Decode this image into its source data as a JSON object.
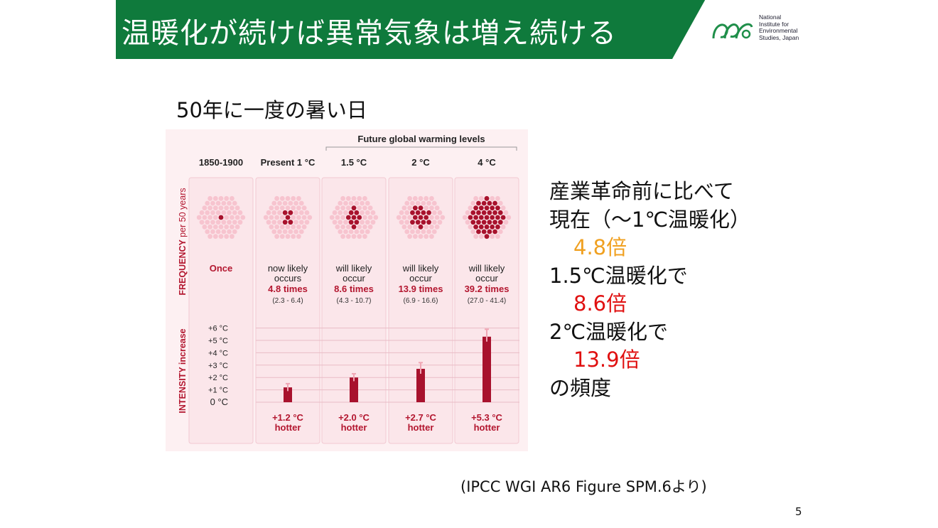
{
  "slide": {
    "title": "温暖化が続けば異常気象は増え続ける",
    "logo_text": [
      "National",
      "Institute for",
      "Environmental",
      "Studies, Japan"
    ],
    "subtitle": "50年に一度の暑い日",
    "side_text": {
      "line1": "産業革命前に比べて",
      "line2": "現在（～1℃温暖化）",
      "line3": "4.8倍",
      "line4": "1.5℃温暖化で",
      "line5": "8.6倍",
      "line6": "2℃温暖化で",
      "line7": "13.9倍",
      "line8": "の頻度"
    },
    "citation": "(IPCC WGI AR6 Figure SPM.6より)",
    "page_number": "5"
  },
  "chart_data": {
    "type": "bar",
    "header": "Future global warming levels",
    "y_label_frequency": "FREQUENCY per 50 years",
    "y_label_frequency_main": "FREQUENCY",
    "y_label_frequency_sub": "per 50 years",
    "y_label_intensity": "INTENSITY increase",
    "yticks": [
      "+6 °C",
      "+5 °C",
      "+4 °C",
      "+3 °C",
      "+2 °C",
      "+1 °C",
      "0 °C"
    ],
    "ylim": [
      0,
      6
    ],
    "categories": [
      "1850-1900",
      "Present 1 °C",
      "1.5 °C",
      "2 °C",
      "4 °C"
    ],
    "frequency": [
      {
        "line1": "Once",
        "line2": "",
        "times": "",
        "range": "",
        "dots": 1
      },
      {
        "line1": "now likely",
        "line2": "occurs",
        "times": "4.8 times",
        "range": "(2.3 - 6.4)",
        "dots": 5
      },
      {
        "line1": "will likely",
        "line2": "occur",
        "times": "8.6 times",
        "range": "(4.3 - 10.7)",
        "dots": 9
      },
      {
        "line1": "will likely",
        "line2": "occur",
        "times": "13.9 times",
        "range": "(6.9 - 16.6)",
        "dots": 14
      },
      {
        "line1": "will likely",
        "line2": "occur",
        "times": "39.2 times",
        "range": "(27.0 - 41.4)",
        "dots": 39
      }
    ],
    "intensity": [
      null,
      {
        "value": 1.2,
        "low": 0.9,
        "high": 1.5,
        "label": "+1.2 °C",
        "label2": "hotter"
      },
      {
        "value": 2.0,
        "low": 1.7,
        "high": 2.3,
        "label": "+2.0 °C",
        "label2": "hotter"
      },
      {
        "value": 2.7,
        "low": 2.3,
        "high": 3.2,
        "label": "+2.7 °C",
        "label2": "hotter"
      },
      {
        "value": 5.3,
        "low": 4.9,
        "high": 5.9,
        "label": "+5.3 °C",
        "label2": "hotter"
      }
    ],
    "colors": {
      "dark": "#a8122d",
      "light": "#f7c4cf",
      "label": "#b3162f",
      "error": "#f0a6b4"
    }
  }
}
